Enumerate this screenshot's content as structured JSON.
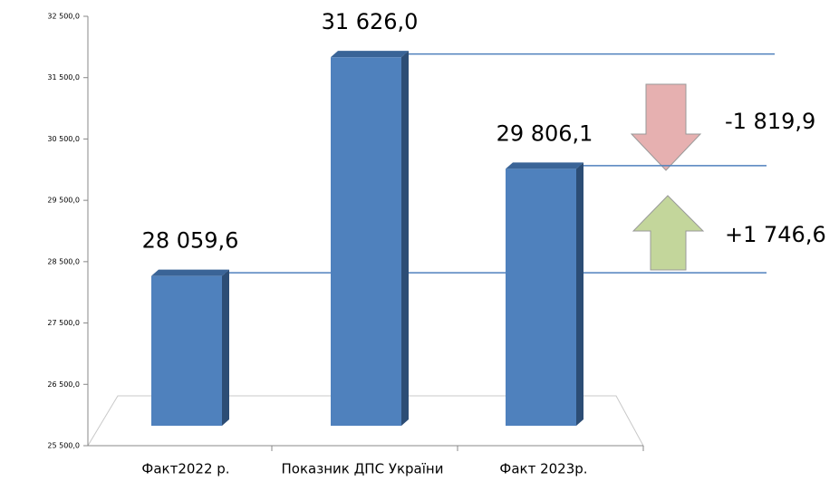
{
  "chart_data": {
    "type": "bar3d",
    "categories": [
      "Факт2022 р.",
      "Показник ДПС України",
      "Факт 2023р."
    ],
    "values": [
      28059.6,
      31626.0,
      29806.1
    ],
    "value_labels": [
      "28 059,6",
      "31 626,0",
      "29 806,1"
    ],
    "color": "#4f81bd",
    "ylim": [
      25500,
      32500
    ],
    "yticks": [
      {
        "value": 25500,
        "label": "25 500,0"
      },
      {
        "value": 26500,
        "label": "26 500,0"
      },
      {
        "value": 27500,
        "label": "27 500,0"
      },
      {
        "value": 28500,
        "label": "28 500,0"
      },
      {
        "value": 29500,
        "label": "29 500,0"
      },
      {
        "value": 30500,
        "label": "30 500,0"
      },
      {
        "value": 31500,
        "label": "31 500,0"
      },
      {
        "value": 32500,
        "label": "32 500,0"
      }
    ],
    "annotations": [
      "-1 819,9",
      "+1 746,6"
    ]
  }
}
